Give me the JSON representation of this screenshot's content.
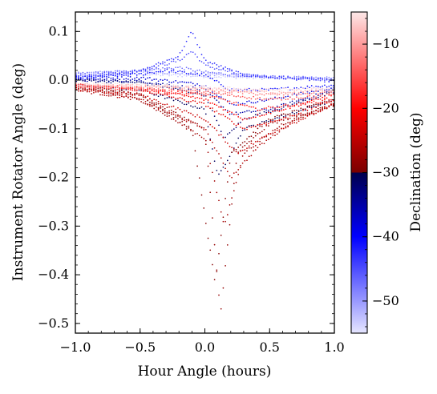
{
  "chart_data": {
    "type": "scatter",
    "title": "",
    "xlabel": "Hour Angle (hours)",
    "ylabel": "Instrument Rotator Angle (deg)",
    "xlim": [
      -1.0,
      1.0
    ],
    "ylim": [
      -0.52,
      0.14
    ],
    "x_ticks": [
      -1.0,
      -0.5,
      0.0,
      0.5,
      1.0
    ],
    "x_tick_labels": [
      "−1.0",
      "−0.5",
      "0.0",
      "0.5",
      "1.0"
    ],
    "y_ticks": [
      0.1,
      0.0,
      -0.1,
      -0.2,
      -0.3,
      -0.4,
      -0.5
    ],
    "y_tick_labels": [
      "0.1",
      "0.0",
      "−0.1",
      "−0.2",
      "−0.3",
      "−0.4",
      "−0.5"
    ],
    "grid": false,
    "colorbar": {
      "label": "Declination (deg)",
      "range": [
        -55,
        -5
      ],
      "ticks": [
        -10,
        -20,
        -30,
        -40,
        -50
      ],
      "tick_labels": [
        "−10",
        "−20",
        "−30",
        "−40",
        "−50"
      ],
      "colors": {
        "low": "#e6e6ff",
        "blue": "#0000ff",
        "navy": "#00004d",
        "maroon": "#7a0000",
        "red": "#ff0000",
        "high": "#fde8e8"
      }
    },
    "tracks": [
      {
        "dec": -53,
        "points": [
          [
            -1.0,
            0.01
          ],
          [
            -0.5,
            0.012
          ],
          [
            0.0,
            0.008
          ],
          [
            0.5,
            0.004
          ],
          [
            1.0,
            0.002
          ]
        ]
      },
      {
        "dec": -50,
        "points": [
          [
            -1.0,
            0.014
          ],
          [
            -0.5,
            0.018
          ],
          [
            0.0,
            0.012
          ],
          [
            0.5,
            0.006
          ],
          [
            1.0,
            0.004
          ]
        ]
      },
      {
        "dec": -47,
        "points": [
          [
            -1.0,
            0.012
          ],
          [
            -0.5,
            0.02
          ],
          [
            -0.2,
            0.026
          ],
          [
            0.0,
            0.016
          ],
          [
            0.5,
            0.006
          ],
          [
            1.0,
            0.002
          ]
        ]
      },
      {
        "dec": -45,
        "points": [
          [
            -1.0,
            0.008
          ],
          [
            -0.5,
            0.02
          ],
          [
            -0.2,
            0.04
          ],
          [
            -0.1,
            0.06
          ],
          [
            0.0,
            0.03
          ],
          [
            0.3,
            0.01
          ],
          [
            1.0,
            0.0
          ]
        ]
      },
      {
        "dec": -43,
        "points": [
          [
            -1.0,
            0.005
          ],
          [
            -0.5,
            0.018
          ],
          [
            -0.2,
            0.05
          ],
          [
            -0.1,
            0.1
          ],
          [
            0.0,
            0.04
          ],
          [
            0.3,
            0.01
          ],
          [
            1.0,
            -0.002
          ]
        ]
      },
      {
        "dec": -41,
        "points": [
          [
            -1.0,
            0.004
          ],
          [
            -0.5,
            0.012
          ],
          [
            -0.3,
            0.02
          ],
          [
            0.0,
            0.01
          ],
          [
            0.2,
            -0.02
          ],
          [
            0.5,
            -0.02
          ],
          [
            1.0,
            -0.01
          ]
        ]
      },
      {
        "dec": -38,
        "points": [
          [
            -1.0,
            0.002
          ],
          [
            -0.5,
            0.005
          ],
          [
            0.0,
            -0.01
          ],
          [
            0.2,
            -0.05
          ],
          [
            0.5,
            -0.04
          ],
          [
            1.0,
            -0.015
          ]
        ]
      },
      {
        "dec": -35,
        "points": [
          [
            -1.0,
            0.0
          ],
          [
            -0.5,
            -0.002
          ],
          [
            0.0,
            -0.02
          ],
          [
            0.2,
            -0.07
          ],
          [
            0.5,
            -0.06
          ],
          [
            1.0,
            -0.02
          ]
        ]
      },
      {
        "dec": -32,
        "points": [
          [
            -1.0,
            0.0
          ],
          [
            -0.5,
            -0.005
          ],
          [
            0.0,
            -0.03
          ],
          [
            0.15,
            -0.12
          ],
          [
            0.3,
            -0.08
          ],
          [
            1.0,
            -0.025
          ]
        ]
      },
      {
        "dec": -31,
        "points": [
          [
            -1.0,
            -0.01
          ],
          [
            -0.5,
            -0.02
          ],
          [
            0.0,
            -0.06
          ],
          [
            0.1,
            -0.2
          ],
          [
            0.3,
            -0.1
          ],
          [
            1.0,
            -0.04
          ]
        ]
      },
      {
        "dec": -29,
        "points": [
          [
            -1.0,
            -0.01
          ],
          [
            -0.5,
            -0.03
          ],
          [
            -0.1,
            -0.1
          ],
          [
            0.08,
            -0.42
          ],
          [
            0.2,
            -0.15
          ],
          [
            0.5,
            -0.08
          ],
          [
            1.0,
            -0.04
          ]
        ]
      },
      {
        "dec": -28,
        "points": [
          [
            -1.0,
            -0.015
          ],
          [
            -0.5,
            -0.03
          ],
          [
            0.0,
            -0.1
          ],
          [
            0.12,
            -0.48
          ],
          [
            0.25,
            -0.15
          ],
          [
            0.5,
            -0.09
          ],
          [
            1.0,
            -0.05
          ]
        ]
      },
      {
        "dec": -27,
        "points": [
          [
            -1.0,
            -0.015
          ],
          [
            -0.5,
            -0.04
          ],
          [
            0.0,
            -0.12
          ],
          [
            0.15,
            -0.3
          ],
          [
            0.3,
            -0.15
          ],
          [
            0.6,
            -0.09
          ],
          [
            1.0,
            -0.05
          ]
        ]
      },
      {
        "dec": -26,
        "points": [
          [
            -1.0,
            -0.02
          ],
          [
            -0.5,
            -0.04
          ],
          [
            0.0,
            -0.1
          ],
          [
            0.2,
            -0.2
          ],
          [
            0.4,
            -0.14
          ],
          [
            0.7,
            -0.08
          ],
          [
            1.0,
            -0.05
          ]
        ]
      },
      {
        "dec": -24,
        "points": [
          [
            -1.0,
            -0.02
          ],
          [
            -0.5,
            -0.03
          ],
          [
            0.0,
            -0.08
          ],
          [
            0.25,
            -0.15
          ],
          [
            0.5,
            -0.11
          ],
          [
            1.0,
            -0.05
          ]
        ]
      },
      {
        "dec": -22,
        "points": [
          [
            -1.0,
            -0.01
          ],
          [
            -0.5,
            -0.02
          ],
          [
            0.0,
            -0.05
          ],
          [
            0.3,
            -0.1
          ],
          [
            0.6,
            -0.08
          ],
          [
            1.0,
            -0.04
          ]
        ]
      },
      {
        "dec": -20,
        "points": [
          [
            -1.0,
            -0.01
          ],
          [
            -0.5,
            -0.015
          ],
          [
            0.0,
            -0.04
          ],
          [
            0.3,
            -0.08
          ],
          [
            0.6,
            -0.06
          ],
          [
            1.0,
            -0.03
          ]
        ]
      },
      {
        "dec": -18,
        "points": [
          [
            -1.0,
            -0.01
          ],
          [
            -0.5,
            -0.02
          ],
          [
            0.0,
            -0.03
          ],
          [
            0.4,
            -0.06
          ],
          [
            1.0,
            -0.04
          ]
        ]
      },
      {
        "dec": -15,
        "points": [
          [
            -1.0,
            -0.012
          ],
          [
            -0.5,
            -0.02
          ],
          [
            0.0,
            -0.025
          ],
          [
            0.5,
            -0.04
          ],
          [
            1.0,
            -0.03
          ]
        ]
      },
      {
        "dec": -12,
        "points": [
          [
            -1.0,
            -0.012
          ],
          [
            -0.5,
            -0.015
          ],
          [
            0.0,
            -0.02
          ],
          [
            0.5,
            -0.03
          ],
          [
            1.0,
            -0.025
          ]
        ]
      },
      {
        "dec": -9,
        "points": [
          [
            -1.0,
            -0.01
          ],
          [
            -0.5,
            -0.012
          ],
          [
            0.0,
            -0.018
          ],
          [
            0.5,
            -0.025
          ],
          [
            1.0,
            -0.022
          ]
        ]
      },
      {
        "dec": -6,
        "points": [
          [
            -1.0,
            -0.008
          ],
          [
            -0.5,
            -0.01
          ],
          [
            0.0,
            -0.015
          ],
          [
            0.5,
            -0.02
          ],
          [
            1.0,
            -0.018
          ]
        ]
      }
    ]
  }
}
